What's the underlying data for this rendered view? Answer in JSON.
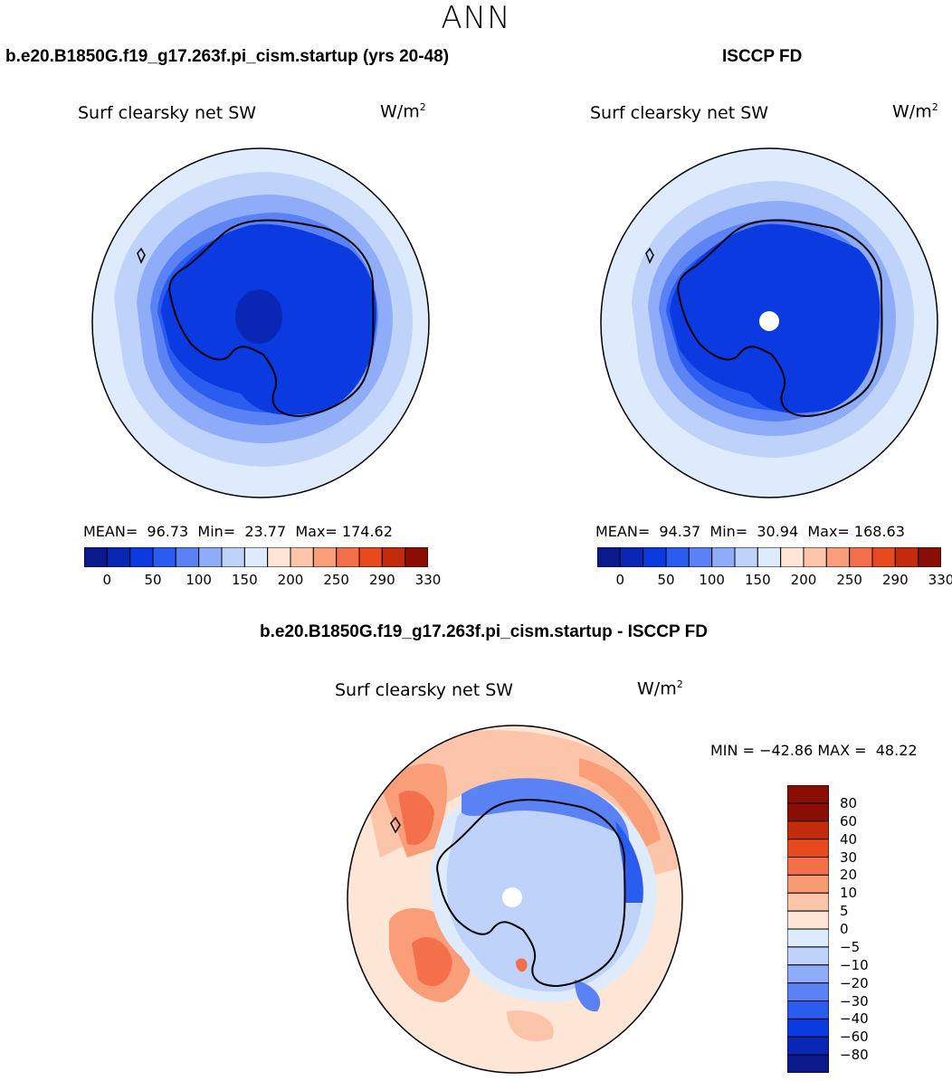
{
  "season": "ANN",
  "panels": {
    "model": {
      "title": "b.e20.B1850G.f19_g17.263f.pi_cism.startup (yrs 20-48)",
      "field": "Surf clearsky net SW",
      "units": "W/m",
      "units_exp": "2",
      "stats": "MEAN=  96.73  Min=  23.77  Max= 174.62",
      "colorbar_ticks": [
        "0",
        "50",
        "100",
        "150",
        "200",
        "250",
        "290",
        "330"
      ]
    },
    "obs": {
      "title": "ISCCP FD",
      "field": "Surf clearsky net SW",
      "units": "W/m",
      "units_exp": "2",
      "stats": "MEAN=  94.37  Min=  30.94  Max= 168.63",
      "colorbar_ticks": [
        "0",
        "50",
        "100",
        "150",
        "200",
        "250",
        "290",
        "330"
      ]
    },
    "diff": {
      "title": "b.e20.B1850G.f19_g17.263f.pi_cism.startup - ISCCP FD",
      "field": "Surf clearsky net SW",
      "units": "W/m",
      "units_exp": "2",
      "stats": "MIN = −42.86 MAX =  48.22",
      "colorbar_ticks": [
        "80",
        "60",
        "40",
        "30",
        "20",
        "10",
        "5",
        "0",
        "−5",
        "−10",
        "−20",
        "−30",
        "−40",
        "−60",
        "−80"
      ]
    }
  },
  "colors": {
    "abs_scale": [
      "#0a1a8c",
      "#0a26b4",
      "#0a3ae0",
      "#2a5cf0",
      "#5a82f4",
      "#8eacf8",
      "#bed2fa",
      "#deebfc",
      "#fde6d6",
      "#fcc4a8",
      "#fa9e7a",
      "#f4704a",
      "#e84a1e",
      "#c42a0c",
      "#8a0e04"
    ],
    "diff_scale": [
      "#8a0e04",
      "#c42a0c",
      "#e84a1e",
      "#f4704a",
      "#f89a72",
      "#fcc4a8",
      "#fde6d6",
      "#deebfc",
      "#bed2fa",
      "#8eacf8",
      "#5a82f4",
      "#2a5cf0",
      "#0a3ae0",
      "#0a26b4",
      "#0a1a8c"
    ]
  }
}
